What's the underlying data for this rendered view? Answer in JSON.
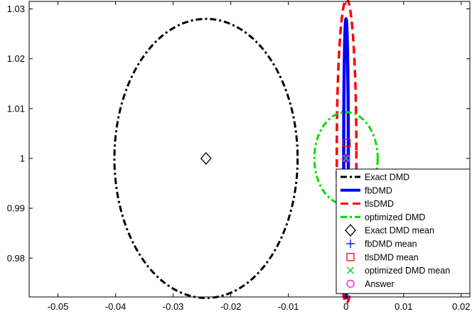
{
  "chart_data": {
    "type": "line",
    "title": "",
    "xlabel": "",
    "ylabel": "",
    "xlim": [
      -0.055,
      0.0215
    ],
    "ylim": [
      0.9722,
      1.0315
    ],
    "grid": false,
    "legend_position": "bottom-right",
    "x_ticks": [
      {
        "value": -0.05,
        "label": "-0.05"
      },
      {
        "value": -0.04,
        "label": "-0.04"
      },
      {
        "value": -0.03,
        "label": "-0.03"
      },
      {
        "value": -0.02,
        "label": "-0.02"
      },
      {
        "value": -0.01,
        "label": "-0.01"
      },
      {
        "value": 0,
        "label": "0"
      },
      {
        "value": 0.01,
        "label": "0.01"
      },
      {
        "value": 0.02,
        "label": "0.02"
      }
    ],
    "y_ticks": [
      {
        "value": 0.98,
        "label": "0.98"
      },
      {
        "value": 0.99,
        "label": "0.99"
      },
      {
        "value": 1.0,
        "label": "1"
      },
      {
        "value": 1.01,
        "label": "1.01"
      },
      {
        "value": 1.02,
        "label": "1.02"
      },
      {
        "value": 1.03,
        "label": "1.03"
      }
    ],
    "ellipses": [
      {
        "name": "Exact DMD",
        "cx": -0.0243,
        "cy": 1.0,
        "rx": 0.0159,
        "ry": 0.028,
        "color": "#000000",
        "style": "dashdot",
        "width": 3
      },
      {
        "name": "fbDMD",
        "cx": 0.0,
        "cy": 1.0,
        "rx": 0.0004,
        "ry": 0.028,
        "color": "#0000ff",
        "style": "solid",
        "width": 4.5
      },
      {
        "name": "tlsDMD",
        "cx": 0.0001,
        "cy": 1.0015,
        "rx": 0.0017,
        "ry": 0.0305,
        "color": "#ff0000",
        "style": "dashed",
        "width": 3.5
      },
      {
        "name": "optimized DMD",
        "cx": 0.0,
        "cy": 1.0,
        "rx": 0.0055,
        "ry": 0.0093,
        "color": "#00dd00",
        "style": "dashdot",
        "width": 3
      }
    ],
    "markers": [
      {
        "name": "Exact DMD mean",
        "x": -0.0243,
        "y": 1.0,
        "shape": "diamond",
        "color": "#000000"
      },
      {
        "name": "fbDMD mean",
        "x": 0.0,
        "y": 1.0,
        "shape": "plus",
        "color": "#0000ff"
      },
      {
        "name": "tlsDMD mean",
        "x": 0.0001,
        "y": 1.0031,
        "shape": "square",
        "color": "#ff0000"
      },
      {
        "name": "optimized DMD mean",
        "x": 0.0,
        "y": 1.0,
        "shape": "cross",
        "color": "#00dd00"
      },
      {
        "name": "Answer",
        "x": 0.0,
        "y": 1.0,
        "shape": "circle",
        "color": "#ff00ff"
      }
    ],
    "legend": [
      {
        "label": "Exact DMD",
        "kind": "line",
        "color": "#000000",
        "style": "dashdot"
      },
      {
        "label": "fbDMD",
        "kind": "line",
        "color": "#0000ff",
        "style": "solid"
      },
      {
        "label": "tlsDMD",
        "kind": "line",
        "color": "#ff0000",
        "style": "dashed"
      },
      {
        "label": "optimized DMD",
        "kind": "line",
        "color": "#00dd00",
        "style": "dashdot"
      },
      {
        "label": "Exact DMD mean",
        "kind": "marker",
        "shape": "diamond",
        "color": "#000000"
      },
      {
        "label": "fbDMD mean",
        "kind": "marker",
        "shape": "plus",
        "color": "#0000ff"
      },
      {
        "label": "tlsDMD mean",
        "kind": "marker",
        "shape": "square",
        "color": "#ff0000"
      },
      {
        "label": "optimized DMD mean",
        "kind": "marker",
        "shape": "cross",
        "color": "#00dd00"
      },
      {
        "label": "Answer",
        "kind": "marker",
        "shape": "circle",
        "color": "#ff00ff"
      }
    ]
  }
}
